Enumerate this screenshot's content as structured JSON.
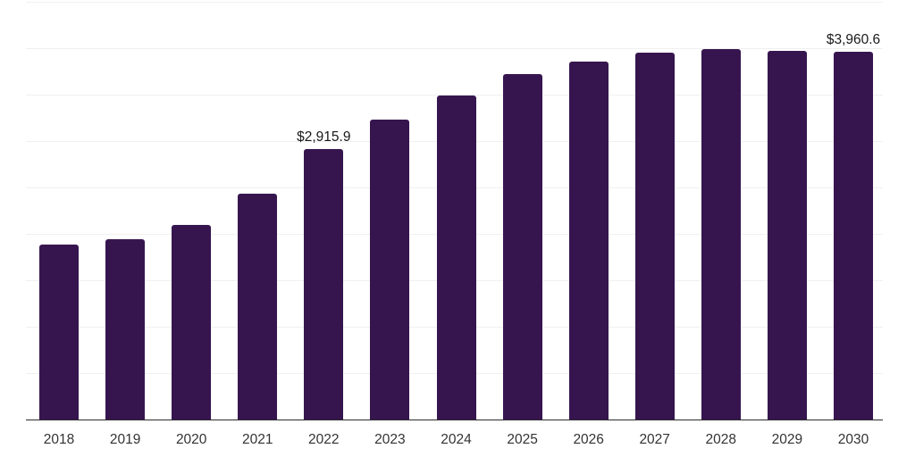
{
  "chart_data": {
    "type": "bar",
    "title": "",
    "xlabel": "",
    "ylabel": "",
    "categories": [
      "2018",
      "2019",
      "2020",
      "2021",
      "2022",
      "2023",
      "2024",
      "2025",
      "2026",
      "2027",
      "2028",
      "2029",
      "2030"
    ],
    "values": [
      1882,
      1940,
      2100,
      2430,
      2915.9,
      3230,
      3495,
      3720,
      3860,
      3952,
      3988,
      3974,
      3960.6
    ],
    "point_labels": [
      "",
      "",
      "",
      "",
      "$2,915.9",
      "",
      "",
      "",
      "",
      "",
      "",
      "",
      "$3,960.6"
    ],
    "ylim": [
      0,
      4500
    ],
    "gridline_step": 500,
    "grid": "horizontal-only",
    "legend": "none",
    "y_axis_tick_labels_visible": false,
    "colors": {
      "bar": "#36154F",
      "gridline": "#F0F0F0",
      "axis_line": "#2B2B2B",
      "value_label_text": "#1A1A1A",
      "tick_label_text": "#333333",
      "background": "#FFFFFF"
    }
  }
}
